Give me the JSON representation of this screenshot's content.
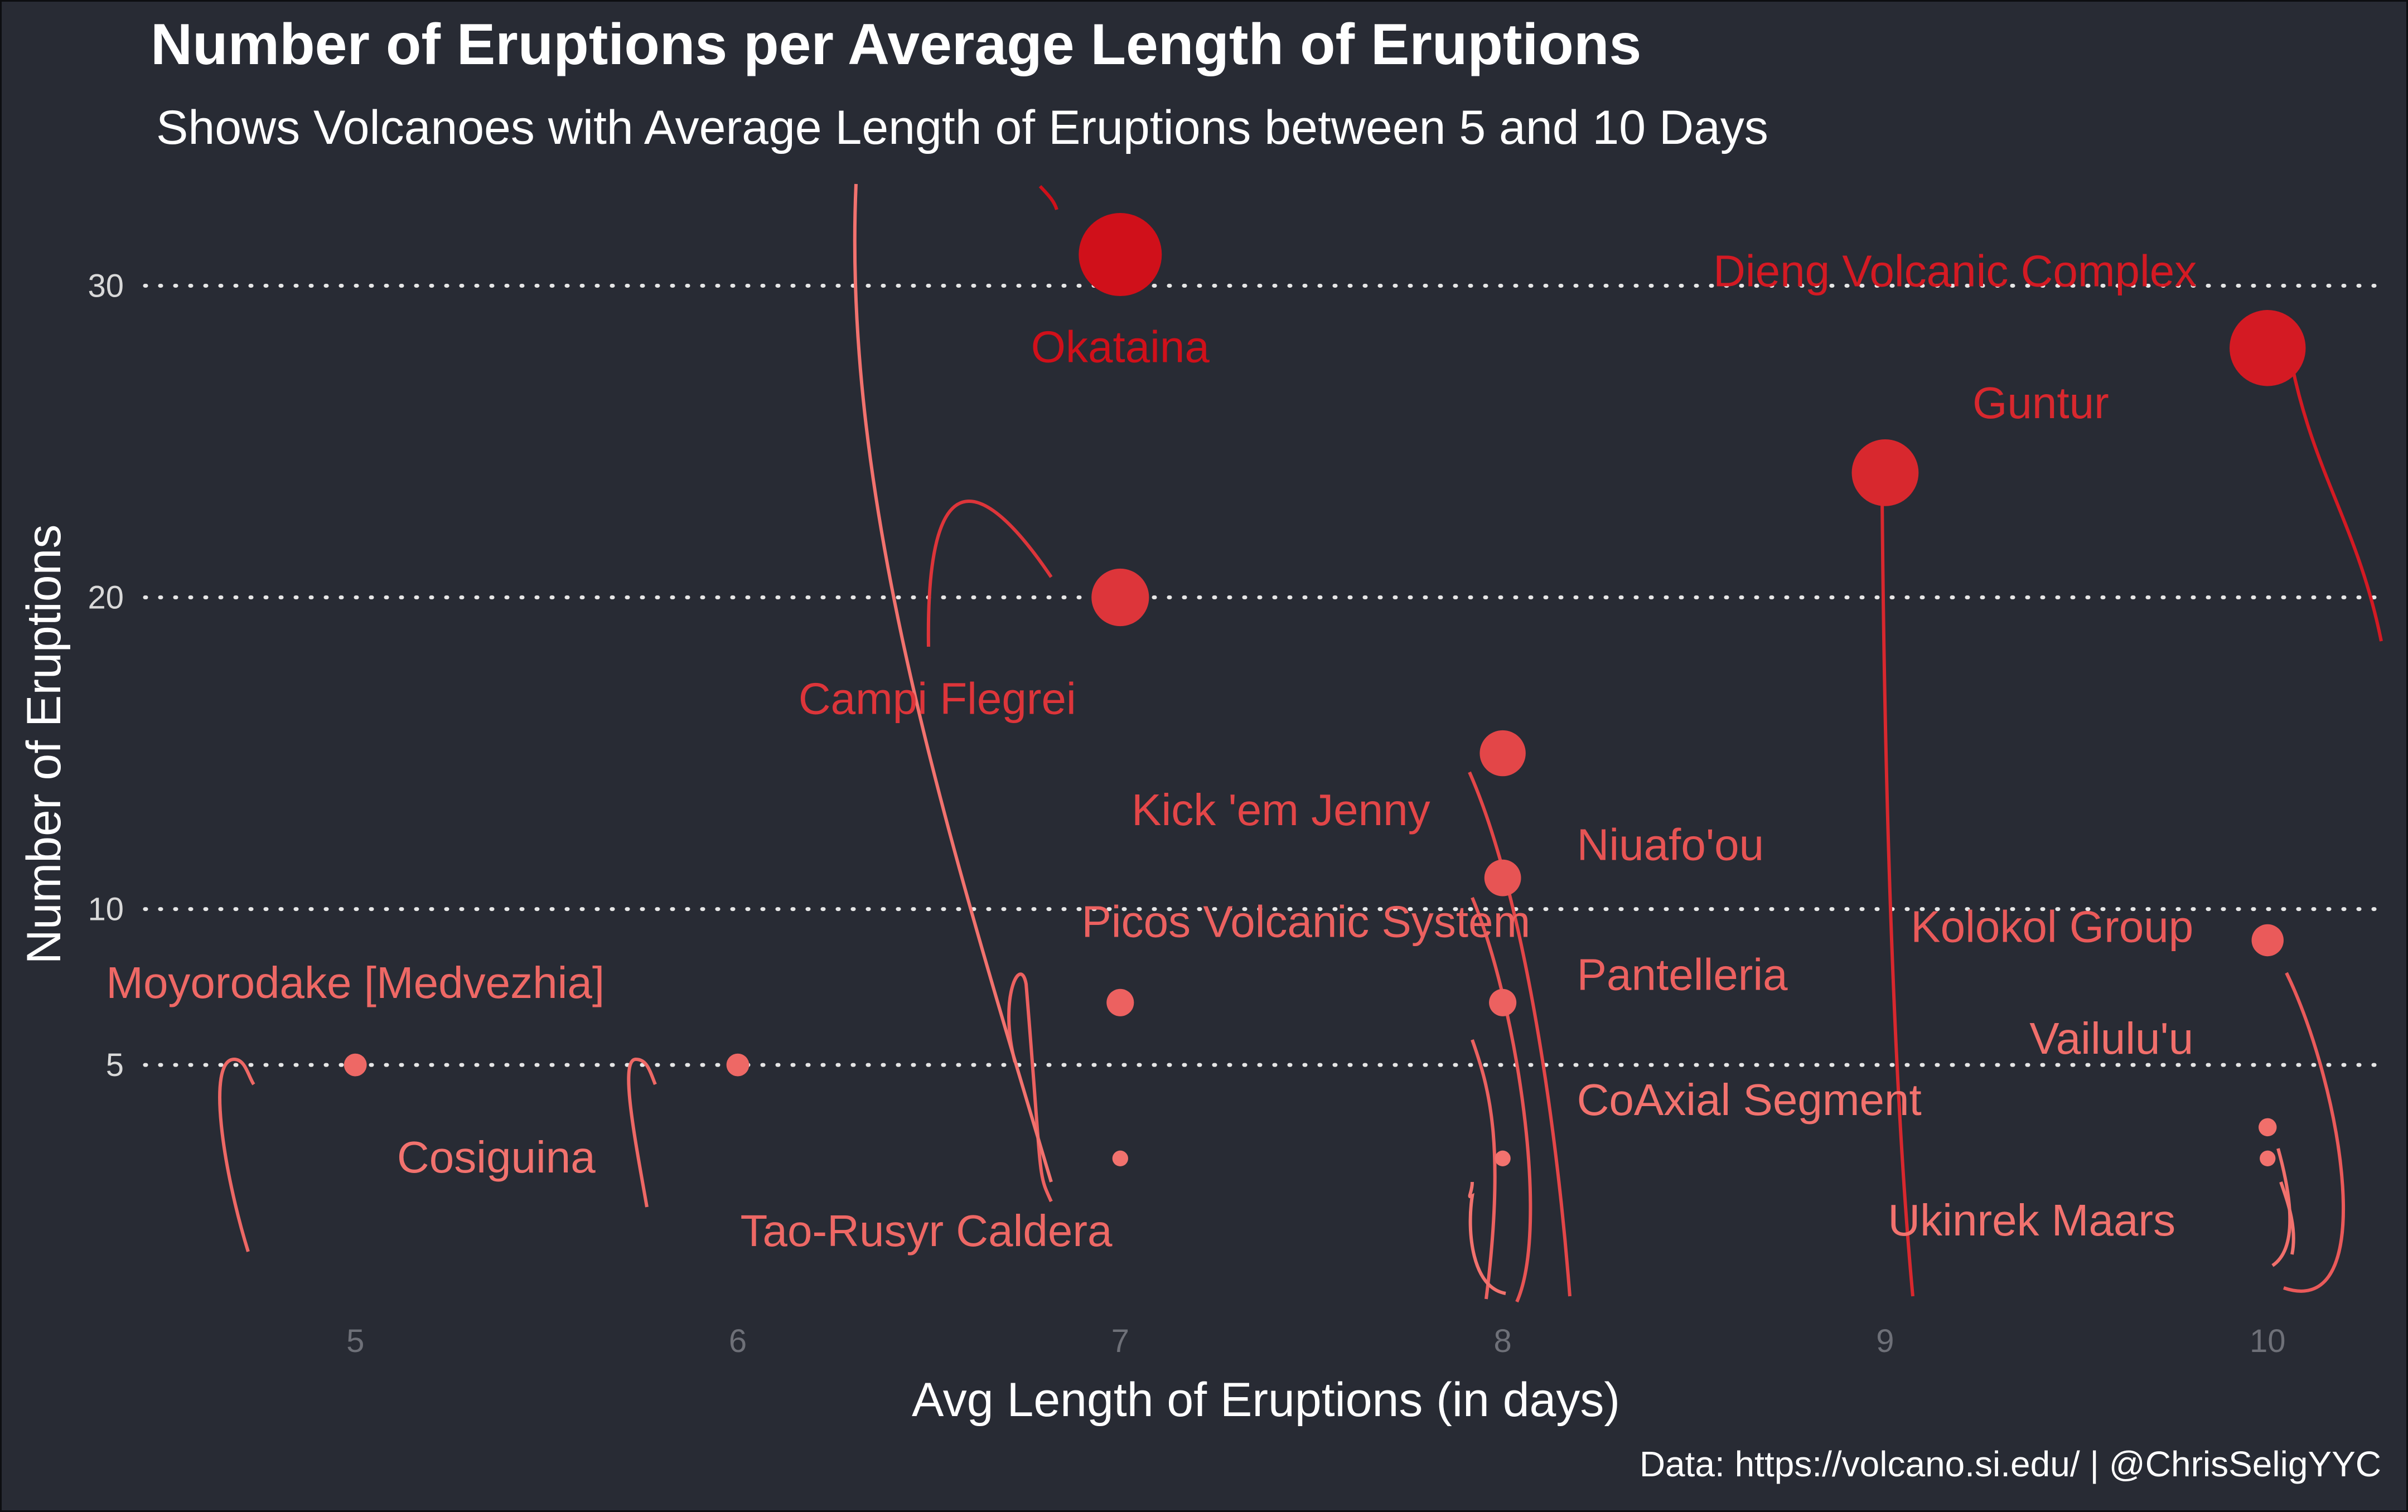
{
  "chart_data": {
    "type": "scatter",
    "title": "Number of Eruptions per Average Length of Eruptions",
    "subtitle": "Shows Volcanoes with Average Length of Eruptions between 5 and 10 Days",
    "xlabel": "Avg Length of Eruptions (in days)",
    "ylabel": "Number of Eruptions",
    "caption": "Data: https://volcano.si.edu/ | @ChrisSeligYYC",
    "xlim": [
      4.45,
      10.3
    ],
    "ylim": [
      -2.6,
      33.8
    ],
    "x_ticks": [
      5,
      6,
      7,
      8,
      9,
      10
    ],
    "y_ticks": [
      5,
      10,
      20,
      30
    ],
    "grid": "horizontal dotted",
    "point_size": "number of eruptions",
    "point_color": "number of eruptions (light red to dark red)",
    "points": [
      {
        "name": "Okataina",
        "x": 7,
        "y": 31
      },
      {
        "name": "Dieng Volcanic Complex",
        "x": 10,
        "y": 28
      },
      {
        "name": "Guntur",
        "x": 9,
        "y": 24
      },
      {
        "name": "Campi Flegrei",
        "x": 7,
        "y": 20
      },
      {
        "name": "Kick 'em Jenny",
        "x": 8,
        "y": 15
      },
      {
        "name": "Niuafo'ou",
        "x": 8,
        "y": 11
      },
      {
        "name": "Kolokol Group",
        "x": 10,
        "y": 9
      },
      {
        "name": "Picos Volcanic System",
        "x": 7,
        "y": 7
      },
      {
        "name": "Pantelleria",
        "x": 8,
        "y": 7
      },
      {
        "name": "Moyorodake [Medvezhia]",
        "x": 5,
        "y": 5
      },
      {
        "name": "Tao-Rusyr Caldera",
        "x": 6,
        "y": 5
      },
      {
        "name": "Vailulu'u",
        "x": 10,
        "y": 3
      },
      {
        "name": "CoAxial Segment",
        "x": 8,
        "y": 2
      },
      {
        "name": "Cosiguina",
        "x": 7,
        "y": 2
      },
      {
        "name": "Ukinrek Maars",
        "x": 10,
        "y": 2
      }
    ]
  },
  "colors": {
    "background": "#282b34",
    "grid": "#e6e6e6",
    "tick_x": "#6e7078",
    "tick_y": "#d9d9d9",
    "point_low": "#f2726e",
    "point_high": "#d0101a"
  }
}
